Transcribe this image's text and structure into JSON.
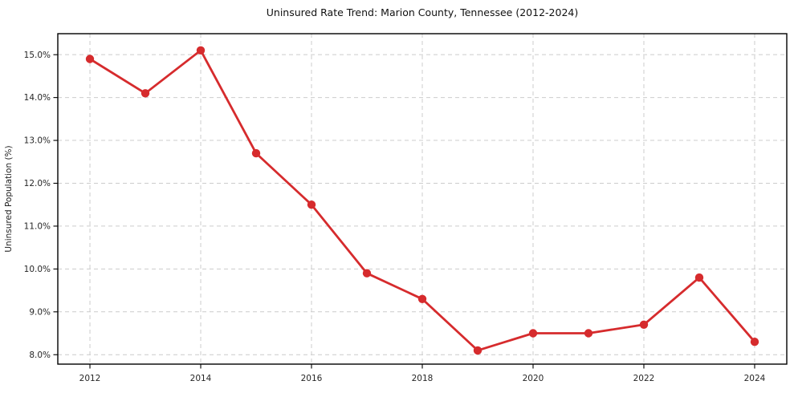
{
  "chart": {
    "title": "Uninsured Rate Trend: Marion County, Tennessee (2012-2024)",
    "ylabel": "Uninsured Population (%)"
  },
  "chart_data": {
    "type": "line",
    "title": "Uninsured Rate Trend: Marion County, Tennessee (2012-2024)",
    "xlabel": "",
    "ylabel": "Uninsured Population (%)",
    "x": [
      2012,
      2013,
      2014,
      2015,
      2016,
      2017,
      2018,
      2019,
      2020,
      2021,
      2022,
      2023,
      2024
    ],
    "values": [
      14.9,
      14.1,
      15.1,
      12.7,
      11.5,
      9.9,
      9.3,
      8.1,
      8.5,
      8.5,
      8.7,
      9.8,
      8.3
    ],
    "xlim": [
      2011.42,
      2024.58
    ],
    "ylim": [
      7.78,
      15.49
    ],
    "xticks": [
      2012,
      2014,
      2016,
      2018,
      2020,
      2022,
      2024
    ],
    "xtick_labels": [
      "2012",
      "2014",
      "2016",
      "2018",
      "2020",
      "2022",
      "2024"
    ],
    "yticks": [
      8.0,
      9.0,
      10.0,
      11.0,
      12.0,
      13.0,
      14.0,
      15.0
    ],
    "ytick_labels": [
      "8.0%",
      "9.0%",
      "10.0%",
      "11.0%",
      "12.0%",
      "13.0%",
      "14.0%",
      "15.0%"
    ],
    "grid": true,
    "grid_style": "dashed",
    "grid_color": "#cccccc",
    "line_color": "#d62b2d",
    "marker": "circle",
    "spine_color": "#000000",
    "legend": "none"
  }
}
